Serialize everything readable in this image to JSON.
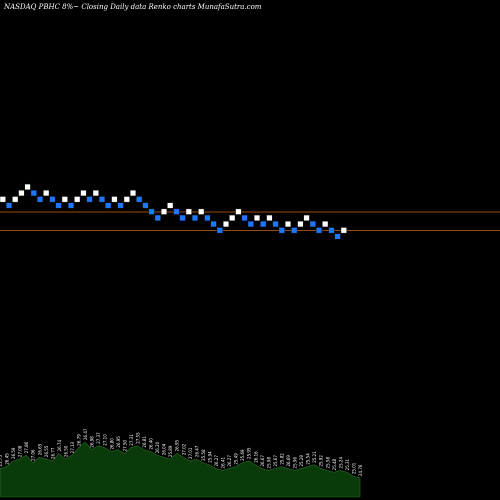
{
  "header": {
    "title": "NASDAQ PBHC 8%~  Closing Daily data  Renko  charts MunafaSutra.com"
  },
  "colors": {
    "background": "#000000",
    "up_brick": "#ffffff",
    "down_brick": "#1e78ff",
    "brick_edge": "#111111",
    "reference_line": "#c8641e",
    "volume_fill": "#0a3a0a",
    "volume_edge": "#2a6a2a"
  },
  "chart_data": {
    "type": "renko",
    "title": "NASDAQ PBHC 8%~  Closing Daily data  Renko  charts MunafaSutra.com",
    "xlabel": "",
    "ylabel": "",
    "grid": false,
    "bricks": [
      {
        "level": 18,
        "dir": "up"
      },
      {
        "level": 17,
        "dir": "down"
      },
      {
        "level": 18,
        "dir": "up"
      },
      {
        "level": 19,
        "dir": "up"
      },
      {
        "level": 20,
        "dir": "up"
      },
      {
        "level": 19,
        "dir": "down"
      },
      {
        "level": 18,
        "dir": "down"
      },
      {
        "level": 19,
        "dir": "up"
      },
      {
        "level": 18,
        "dir": "down"
      },
      {
        "level": 17,
        "dir": "down"
      },
      {
        "level": 18,
        "dir": "up"
      },
      {
        "level": 17,
        "dir": "down"
      },
      {
        "level": 18,
        "dir": "up"
      },
      {
        "level": 19,
        "dir": "up"
      },
      {
        "level": 18,
        "dir": "down"
      },
      {
        "level": 19,
        "dir": "up"
      },
      {
        "level": 18,
        "dir": "down"
      },
      {
        "level": 17,
        "dir": "down"
      },
      {
        "level": 18,
        "dir": "up"
      },
      {
        "level": 17,
        "dir": "down"
      },
      {
        "level": 18,
        "dir": "up"
      },
      {
        "level": 19,
        "dir": "up"
      },
      {
        "level": 18,
        "dir": "down"
      },
      {
        "level": 17,
        "dir": "down"
      },
      {
        "level": 16,
        "dir": "down"
      },
      {
        "level": 15,
        "dir": "down"
      },
      {
        "level": 16,
        "dir": "up"
      },
      {
        "level": 17,
        "dir": "up"
      },
      {
        "level": 16,
        "dir": "down"
      },
      {
        "level": 15,
        "dir": "down"
      },
      {
        "level": 16,
        "dir": "up"
      },
      {
        "level": 15,
        "dir": "down"
      },
      {
        "level": 16,
        "dir": "up"
      },
      {
        "level": 15,
        "dir": "down"
      },
      {
        "level": 14,
        "dir": "down"
      },
      {
        "level": 13,
        "dir": "down"
      },
      {
        "level": 14,
        "dir": "up"
      },
      {
        "level": 15,
        "dir": "up"
      },
      {
        "level": 16,
        "dir": "up"
      },
      {
        "level": 15,
        "dir": "down"
      },
      {
        "level": 14,
        "dir": "down"
      },
      {
        "level": 15,
        "dir": "up"
      },
      {
        "level": 14,
        "dir": "down"
      },
      {
        "level": 15,
        "dir": "up"
      },
      {
        "level": 14,
        "dir": "down"
      },
      {
        "level": 13,
        "dir": "down"
      },
      {
        "level": 14,
        "dir": "up"
      },
      {
        "level": 13,
        "dir": "down"
      },
      {
        "level": 14,
        "dir": "up"
      },
      {
        "level": 15,
        "dir": "up"
      },
      {
        "level": 14,
        "dir": "down"
      },
      {
        "level": 13,
        "dir": "down"
      },
      {
        "level": 14,
        "dir": "up"
      },
      {
        "level": 13,
        "dir": "down"
      },
      {
        "level": 12,
        "dir": "down"
      },
      {
        "level": 13,
        "dir": "up"
      }
    ],
    "reference_lines": [
      16.5,
      13.5
    ],
    "volume": [
      30,
      32,
      38,
      40,
      44,
      36,
      42,
      40,
      38,
      46,
      40,
      44,
      52,
      58,
      50,
      54,
      52,
      48,
      50,
      46,
      52,
      54,
      50,
      48,
      44,
      42,
      40,
      46,
      42,
      38,
      40,
      36,
      34,
      30,
      28,
      30,
      32,
      36,
      38,
      34,
      30,
      28,
      30,
      32,
      30,
      28,
      30,
      32,
      34,
      30,
      28,
      26,
      28,
      26,
      22,
      20
    ],
    "volume_labels": [
      "25.75",
      "26.45",
      "26.59",
      "27.08",
      "27.86",
      "27.06",
      "26.65",
      "26.55",
      "26.77",
      "26.74",
      "26.50",
      "27.13",
      "26.79",
      "26.47",
      "26.98",
      "27.37",
      "27.10",
      "26.80",
      "26.95",
      "27.50",
      "27.31",
      "27.55",
      "26.81",
      "26.40",
      "26.20",
      "26.04",
      "25.89",
      "26.95",
      "27.02",
      "27.01",
      "26.47",
      "25.58",
      "25.94",
      "26.27",
      "26.41",
      "26.27",
      "25.49",
      "25.69",
      "25.95",
      "26.16",
      "26.67",
      "25.98",
      "25.67",
      "25.82",
      "26.69",
      "25.96",
      "25.28",
      "25.54",
      "25.21",
      "25.92",
      "25.58",
      "25.48",
      "25.24",
      "25.31",
      "25.01",
      "24.76"
    ]
  }
}
